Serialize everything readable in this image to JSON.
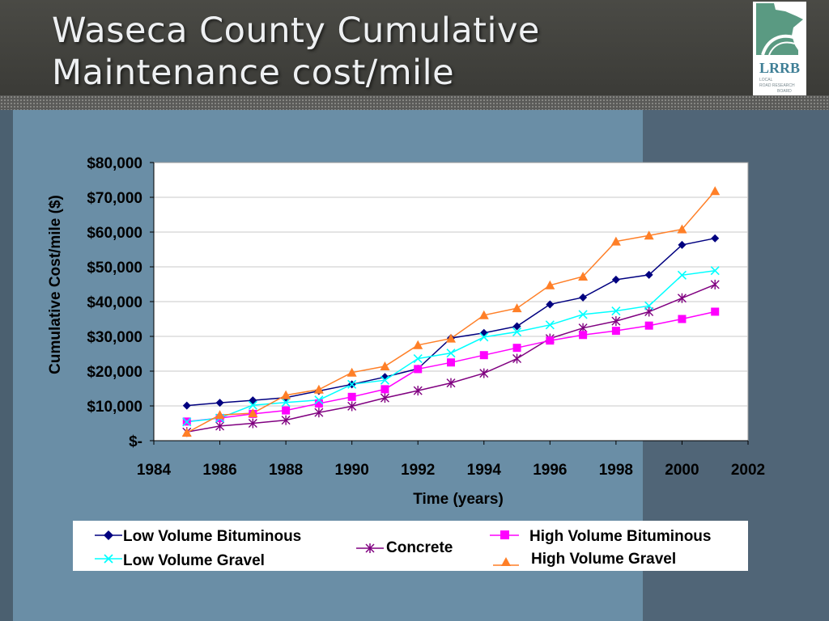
{
  "header": {
    "title_line1": "Waseca County Cumulative",
    "title_line2": "Maintenance cost/mile",
    "logo_text": "LRRB",
    "logo_subtext_1": "LOCAL",
    "logo_subtext_2": "ROAD RESEARCH",
    "logo_subtext_3": "BOARD"
  },
  "colors": {
    "low_volume_bituminous": "#000080",
    "concrete": "#800080",
    "high_volume_bituminous": "#ff00ff",
    "low_volume_gravel": "#00ffff",
    "high_volume_gravel": "#ff7f27"
  },
  "chart_data": {
    "type": "line",
    "xlabel": "Time (years)",
    "ylabel": "Cumulative Cost/mile ($)",
    "xlim": [
      1984,
      2002
    ],
    "ylim": [
      0,
      80000
    ],
    "x_ticks": [
      "1984",
      "1986",
      "1988",
      "1990",
      "1992",
      "1994",
      "1996",
      "1998",
      "2000",
      "2002"
    ],
    "y_ticks": [
      "$-",
      "$10,000",
      "$20,000",
      "$30,000",
      "$40,000",
      "$50,000",
      "$60,000",
      "$70,000",
      "$80,000"
    ],
    "grid": "horizontal",
    "legend_position": "bottom",
    "x": [
      1985,
      1986,
      1987,
      1988,
      1989,
      1990,
      1991,
      1992,
      1993,
      1994,
      1995,
      1996,
      1997,
      1998,
      1999,
      2000,
      2001
    ],
    "series": [
      {
        "name": "Low Volume Bituminous",
        "color": "#000080",
        "marker": "diamond",
        "values": [
          10100,
          10900,
          11600,
          12400,
          14300,
          16200,
          18300,
          20700,
          29500,
          31000,
          32900,
          39200,
          41200,
          46300,
          47700,
          56300,
          58200
        ]
      },
      {
        "name": "Concrete",
        "color": "#800080",
        "marker": "asterisk",
        "values": [
          2500,
          4200,
          5000,
          5900,
          8100,
          9900,
          12300,
          14400,
          16600,
          19400,
          23600,
          29400,
          32400,
          34400,
          37100,
          41000,
          44900
        ]
      },
      {
        "name": "High Volume Bituminous",
        "color": "#ff00ff",
        "marker": "square",
        "values": [
          5500,
          6500,
          7700,
          8700,
          10700,
          12600,
          14800,
          20600,
          22500,
          24600,
          26700,
          28800,
          30400,
          31600,
          33100,
          35000,
          37100
        ]
      },
      {
        "name": "Low Volume Gravel",
        "color": "#00ffff",
        "marker": "x",
        "values": [
          5400,
          6500,
          10200,
          11000,
          11700,
          16200,
          17400,
          23600,
          25200,
          29800,
          31300,
          33300,
          36300,
          37300,
          38800,
          47600,
          48900
        ]
      },
      {
        "name": "High Volume Gravel",
        "color": "#ff7f27",
        "marker": "triangle",
        "values": [
          2300,
          7400,
          7900,
          13100,
          14700,
          19600,
          21400,
          27500,
          29400,
          36100,
          38100,
          44700,
          47200,
          57300,
          59000,
          60800,
          71800
        ]
      }
    ]
  }
}
